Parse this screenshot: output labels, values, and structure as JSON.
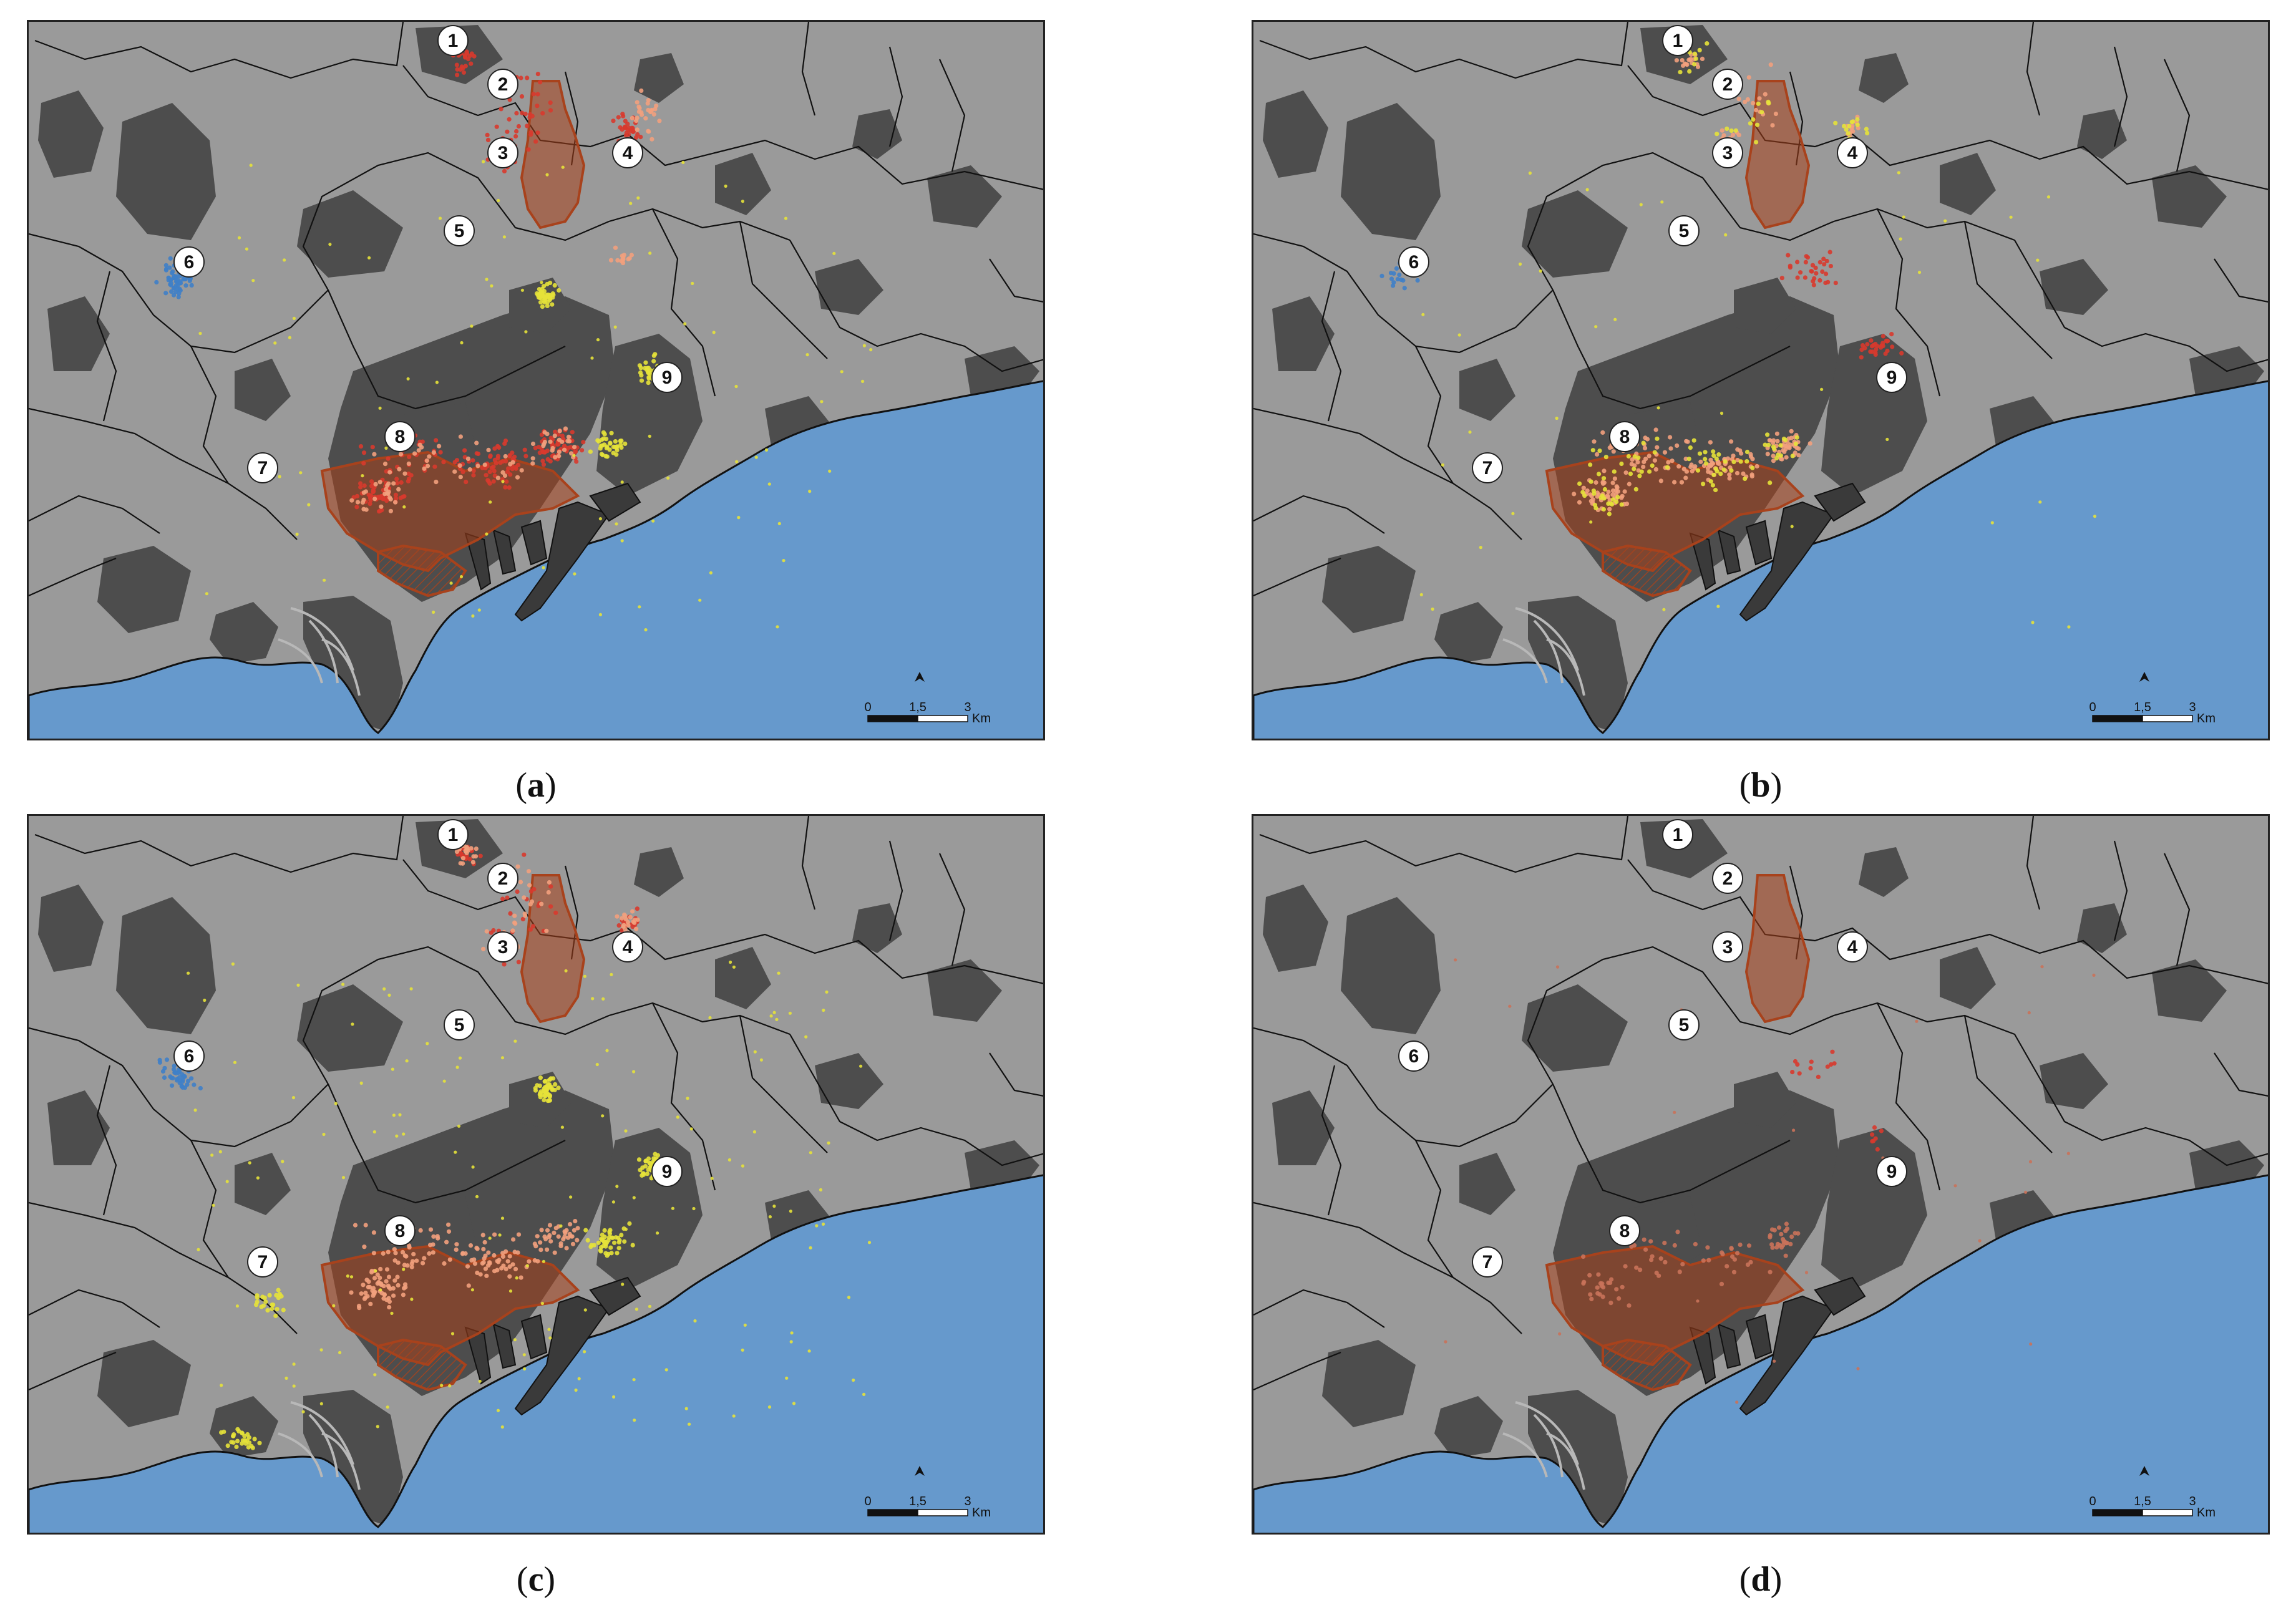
{
  "panels": [
    {
      "key": "a",
      "caption_open": "(",
      "caption_letter": "a",
      "caption_close": ")",
      "point_groups": [
        {
          "color": "#d83a2e",
          "area": "north",
          "count": 110
        },
        {
          "color": "#d83a2e",
          "area": "center",
          "count": 220
        },
        {
          "color": "#f2a07d",
          "area": "center",
          "count": 90
        },
        {
          "color": "#e6e23a",
          "area": "east",
          "count": 120
        },
        {
          "color": "#e6e23a",
          "area": "scatter",
          "count": 90
        },
        {
          "color": "#3f7fc8",
          "area": "west",
          "count": 70
        },
        {
          "color": "#f2a07d",
          "area": "northeast",
          "count": 40
        }
      ]
    },
    {
      "key": "b",
      "caption_open": "(",
      "caption_letter": "b",
      "caption_close": ")",
      "point_groups": [
        {
          "color": "#f2a07d",
          "area": "center",
          "count": 200
        },
        {
          "color": "#e6e23a",
          "area": "center",
          "count": 90
        },
        {
          "color": "#d83a2e",
          "area": "mid",
          "count": 60
        },
        {
          "color": "#f2a07d",
          "area": "north",
          "count": 60
        },
        {
          "color": "#e6e23a",
          "area": "north",
          "count": 40
        },
        {
          "color": "#3f7fc8",
          "area": "west",
          "count": 20
        },
        {
          "color": "#e6e23a",
          "area": "scatter",
          "count": 40
        }
      ]
    },
    {
      "key": "c",
      "caption_open": "(",
      "caption_letter": "c",
      "caption_close": ")",
      "point_groups": [
        {
          "color": "#f2a07d",
          "area": "center",
          "count": 200
        },
        {
          "color": "#e6e23a",
          "area": "east",
          "count": 140
        },
        {
          "color": "#e6e23a",
          "area": "scatter",
          "count": 160
        },
        {
          "color": "#d83a2e",
          "area": "north",
          "count": 70
        },
        {
          "color": "#f2a07d",
          "area": "north",
          "count": 70
        },
        {
          "color": "#3f7fc8",
          "area": "west",
          "count": 50
        },
        {
          "color": "#e6e23a",
          "area": "southwest",
          "count": 50
        }
      ]
    },
    {
      "key": "d",
      "caption_open": "(",
      "caption_letter": "d",
      "caption_close": ")",
      "point_groups": [
        {
          "color": "#c9725a",
          "area": "center",
          "count": 90
        },
        {
          "color": "#d83a2e",
          "area": "mid",
          "count": 18
        },
        {
          "color": "#c9725a",
          "area": "scatter",
          "count": 25
        }
      ]
    }
  ],
  "labels": [
    "1",
    "2",
    "3",
    "4",
    "5",
    "6",
    "7",
    "8",
    "9"
  ],
  "scale_bar": {
    "t0": "0",
    "t1": "1,5",
    "t2": "3",
    "unit": "Km"
  },
  "colors": {
    "sea": "#6699cc",
    "land": "#9a9a9a",
    "urban": "#4d4d4d",
    "boundary": "#111111",
    "highlight_area": "#a8421c",
    "red": "#d83a2e",
    "salmon": "#f2a07d",
    "yellow": "#e6e23a",
    "blue": "#3f7fc8"
  }
}
